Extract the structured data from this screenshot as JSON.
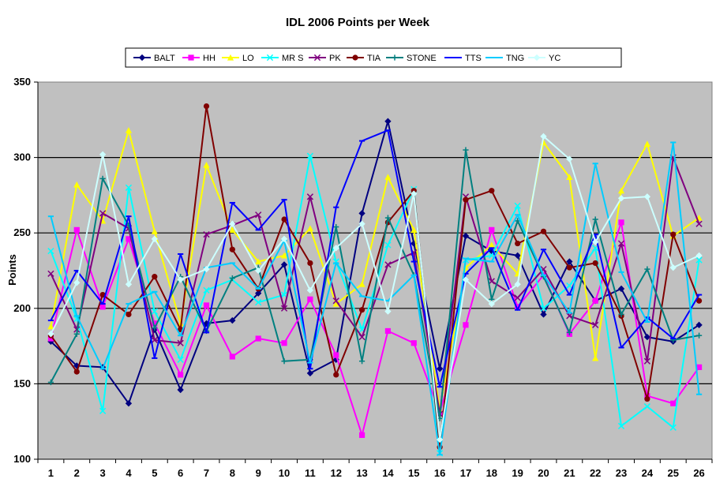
{
  "chart_data": {
    "type": "line",
    "title": "IDL 2006 Points per Week",
    "xlabel": "",
    "ylabel": "Points",
    "ylim": [
      100,
      350
    ],
    "yticks": [
      100,
      150,
      200,
      250,
      300,
      350
    ],
    "grid": "horizontal",
    "legend_position": "top",
    "plot_background": "#c0c0c0",
    "categories": [
      "1",
      "2",
      "3",
      "4",
      "5",
      "6",
      "7",
      "8",
      "9",
      "10",
      "11",
      "12",
      "13",
      "14",
      "15",
      "16",
      "17",
      "18",
      "19",
      "20",
      "21",
      "22",
      "23",
      "24",
      "25",
      "26"
    ],
    "series": [
      {
        "name": "BALT",
        "color": "#000080",
        "marker": "diamond",
        "values": [
          178,
          162,
          161,
          137,
          186,
          146,
          190,
          192,
          210,
          229,
          157,
          166,
          263,
          324,
          243,
          160,
          248,
          238,
          235,
          196,
          231,
          205,
          213,
          181,
          178,
          189
        ]
      },
      {
        "name": "HH",
        "color": "#ff00ff",
        "marker": "square",
        "values": [
          180,
          252,
          201,
          246,
          190,
          156,
          202,
          168,
          180,
          177,
          206,
          169,
          116,
          185,
          177,
          131,
          189,
          252,
          201,
          222,
          183,
          205,
          257,
          142,
          137,
          161
        ]
      },
      {
        "name": "LO",
        "color": "#ffff00",
        "marker": "triangle",
        "values": [
          188,
          282,
          258,
          318,
          251,
          190,
          295,
          252,
          231,
          235,
          253,
          203,
          216,
          287,
          252,
          133,
          227,
          242,
          223,
          310,
          287,
          167,
          278,
          309,
          248,
          260
        ]
      },
      {
        "name": "MR S",
        "color": "#00ffff",
        "marker": "x",
        "values": [
          238,
          193,
          132,
          280,
          198,
          166,
          212,
          219,
          204,
          209,
          301,
          231,
          186,
          242,
          279,
          104,
          232,
          235,
          268,
          200,
          215,
          240,
          122,
          135,
          121,
          232
        ]
      },
      {
        "name": "PK",
        "color": "#800080",
        "marker": "x",
        "values": [
          223,
          186,
          263,
          253,
          179,
          177,
          249,
          255,
          262,
          200,
          274,
          205,
          181,
          229,
          237,
          130,
          274,
          218,
          207,
          226,
          195,
          189,
          243,
          165,
          300,
          256
        ]
      },
      {
        "name": "TIA",
        "color": "#800000",
        "marker": "circle",
        "values": [
          182,
          158,
          209,
          196,
          221,
          186,
          334,
          239,
          213,
          259,
          230,
          156,
          199,
          257,
          278,
          108,
          272,
          278,
          243,
          251,
          227,
          230,
          195,
          140,
          249,
          205
        ]
      },
      {
        "name": "STONE",
        "color": "#008080",
        "marker": "plus",
        "values": [
          151,
          183,
          286,
          255,
          187,
          221,
          185,
          220,
          227,
          165,
          166,
          254,
          165,
          260,
          222,
          127,
          305,
          206,
          258,
          221,
          184,
          259,
          196,
          226,
          179,
          182
        ]
      },
      {
        "name": "TTS",
        "color": "#0000ff",
        "marker": "dash",
        "values": [
          192,
          225,
          203,
          261,
          167,
          236,
          184,
          270,
          252,
          272,
          160,
          267,
          311,
          318,
          231,
          148,
          223,
          240,
          199,
          239,
          209,
          249,
          174,
          194,
          180,
          209
        ]
      },
      {
        "name": "TNG",
        "color": "#00ccff",
        "marker": "dash",
        "values": [
          261,
          195,
          160,
          203,
          211,
          182,
          227,
          230,
          213,
          245,
          164,
          230,
          208,
          205,
          222,
          103,
          233,
          231,
          262,
          222,
          197,
          296,
          224,
          191,
          310,
          143
        ]
      },
      {
        "name": "YC",
        "color": "#ccffff",
        "marker": "diamond",
        "values": [
          183,
          217,
          302,
          216,
          246,
          219,
          226,
          256,
          225,
          246,
          212,
          240,
          256,
          198,
          276,
          113,
          219,
          203,
          216,
          314,
          299,
          244,
          273,
          274,
          227,
          235
        ]
      }
    ]
  }
}
